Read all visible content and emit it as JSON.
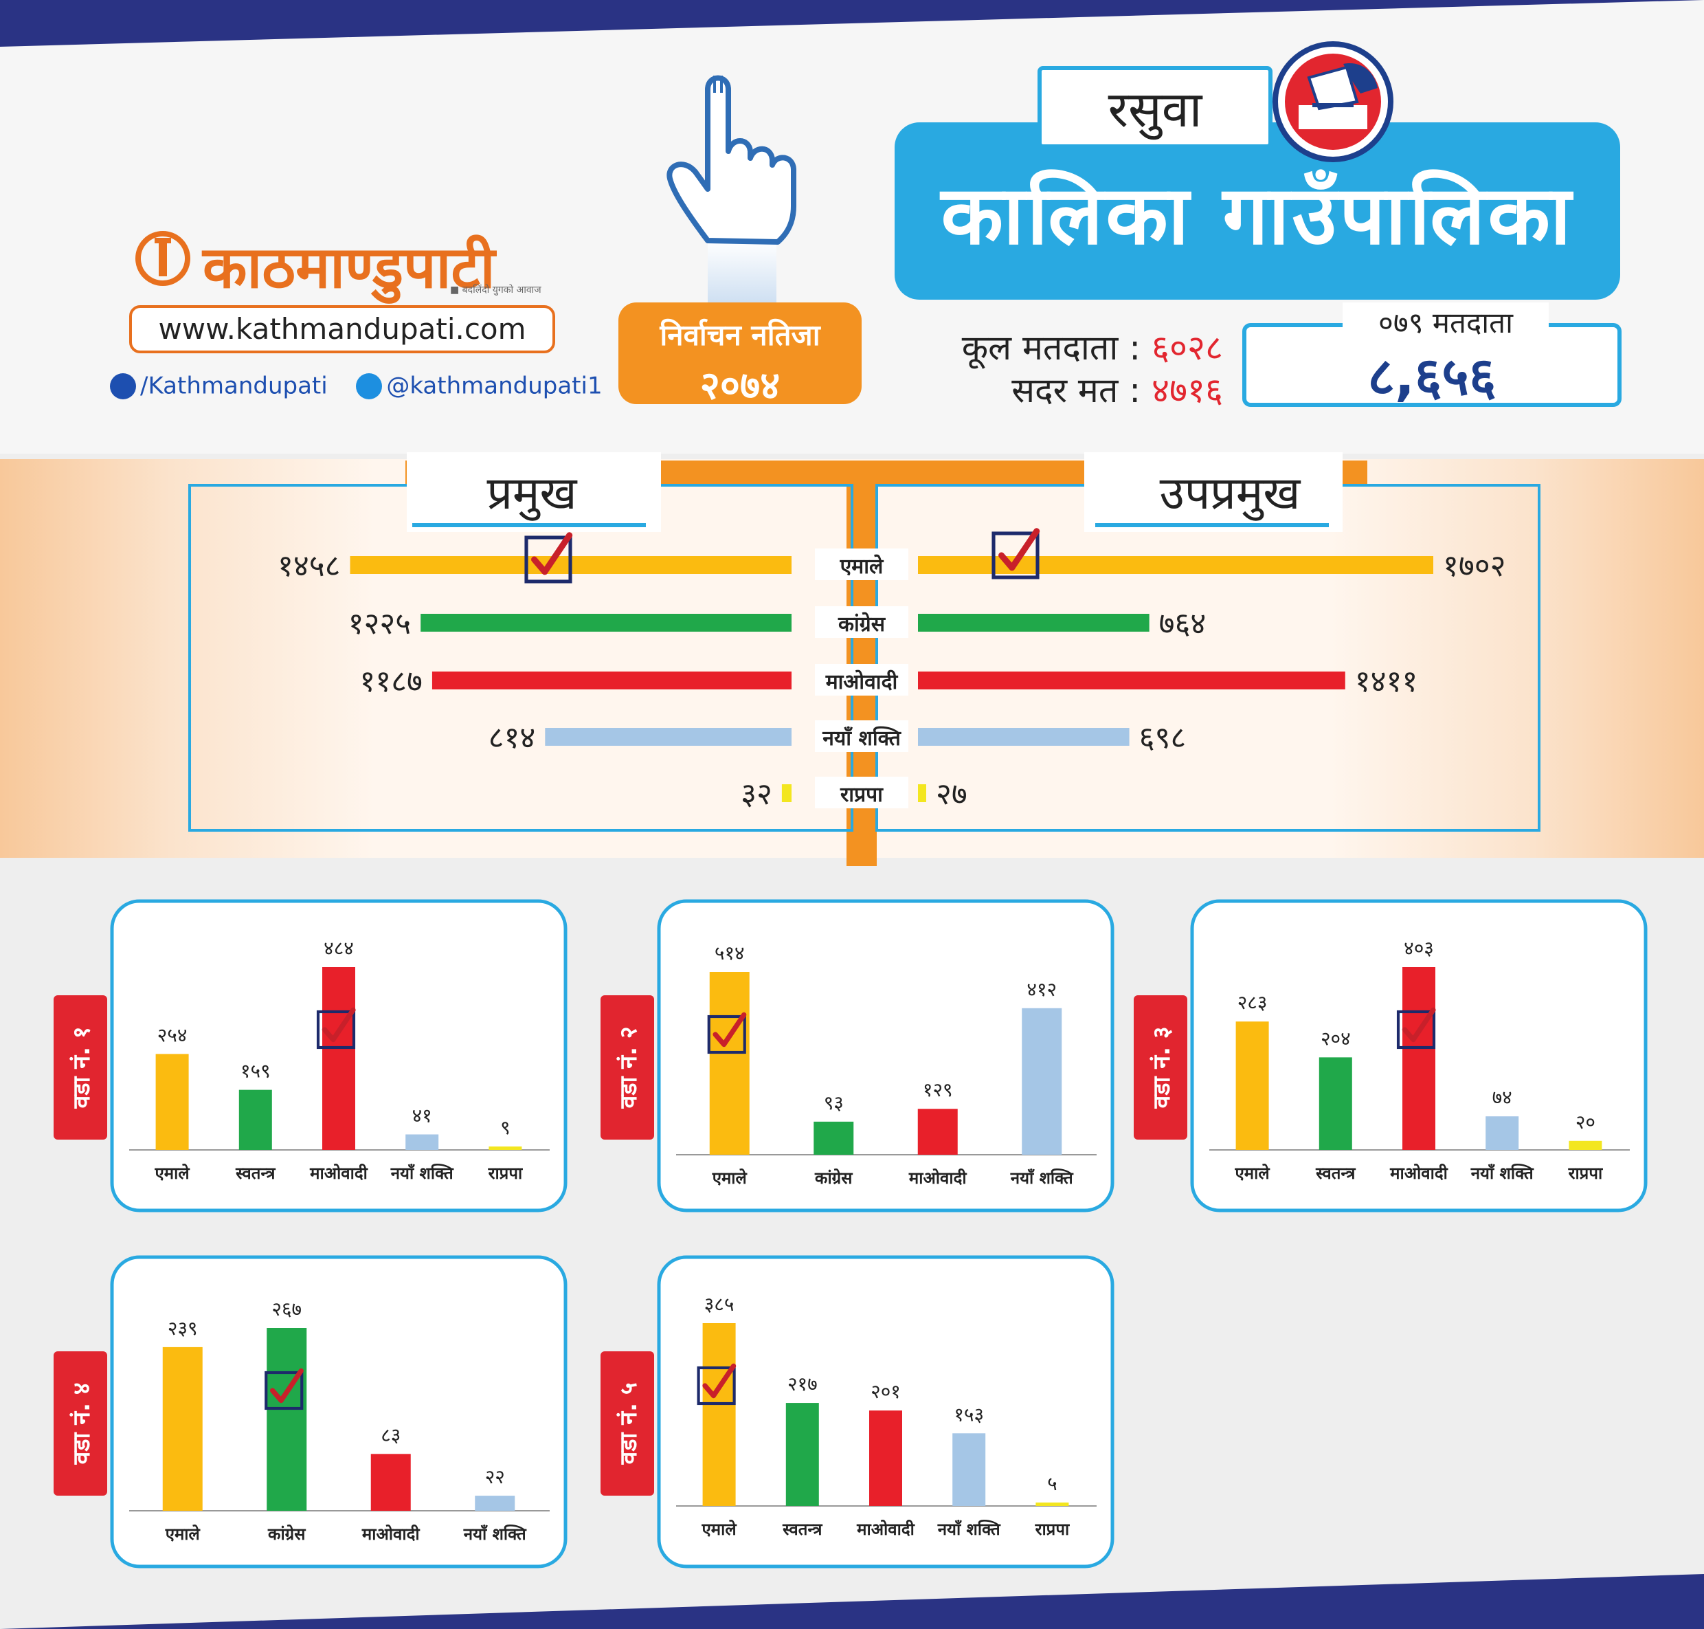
{
  "header": {
    "logo_text": "काठमाण्डुपाटी",
    "logo_tagline": "■ बदलिंदो युगको आवाज",
    "website": "www.kathmandupati.com",
    "facebook": "/Kathmandupati",
    "twitter": "@kathmandupati1",
    "result_line1": "निर्वाचन नतिजा",
    "result_line2": "२०७४",
    "district": "रसुवा",
    "municipality": "कालिका गाउँपालिका",
    "total_voters_label": "कूल मतदाता",
    "total_voters_value": "६०२८",
    "valid_votes_label": "सदर मत",
    "valid_votes_value": "४७१६",
    "ward_voters_label": "०७९ मतदाता",
    "ward_voters_value": "८,६५६",
    "colon": ":"
  },
  "colors": {
    "एमाले": "#fbbb10",
    "कांग्रेस": "#20a84a",
    "स्वतन्त्र": "#20a84a",
    "माओवादी": "#e8202a",
    "नयाँ शक्ति": "#a5c6e6",
    "राप्रपा": "#f3e620",
    "frame": "#29a9e1",
    "orange": "#f39221",
    "ward_tab": "#e1252f"
  },
  "chart_data": [
    {
      "type": "bar",
      "title": "प्रमुख",
      "categories": [
        "एमाले",
        "कांग्रेस",
        "माओवादी",
        "नयाँ शक्ति",
        "राप्रपा"
      ],
      "values": [
        1458,
        1225,
        1187,
        814,
        32
      ],
      "labels": [
        "१४५८",
        "१२२५",
        "११८७",
        "८१४",
        "३२"
      ],
      "winner": "एमाले"
    },
    {
      "type": "bar",
      "title": "उपप्रमुख",
      "categories": [
        "एमाले",
        "कांग्रेस",
        "माओवादी",
        "नयाँ शक्ति",
        "राप्रपा"
      ],
      "values": [
        1702,
        764,
        1411,
        698,
        27
      ],
      "labels": [
        "१७०२",
        "७६४",
        "१४११",
        "६९८",
        "२७"
      ],
      "winner": "एमाले"
    },
    {
      "type": "bar",
      "title": "वडा नं. १",
      "categories": [
        "एमाले",
        "स्वतन्त्र",
        "माओवादी",
        "नयाँ शक्ति",
        "राप्रपा"
      ],
      "values": [
        254,
        159,
        484,
        41,
        9
      ],
      "labels": [
        "२५४",
        "१५९",
        "४८४",
        "४१",
        "९"
      ],
      "winner": "माओवादी"
    },
    {
      "type": "bar",
      "title": "वडा नं. २",
      "categories": [
        "एमाले",
        "कांग्रेस",
        "माओवादी",
        "नयाँ शक्ति"
      ],
      "values": [
        514,
        93,
        129,
        412
      ],
      "labels": [
        "५१४",
        "९३",
        "१२९",
        "४१२"
      ],
      "winner": "एमाले"
    },
    {
      "type": "bar",
      "title": "वडा नं. ३",
      "categories": [
        "एमाले",
        "स्वतन्त्र",
        "माओवादी",
        "नयाँ शक्ति",
        "राप्रपा"
      ],
      "values": [
        283,
        204,
        403,
        74,
        20
      ],
      "labels": [
        "२८३",
        "२०४",
        "४०३",
        "७४",
        "२०"
      ],
      "winner": "माओवादी"
    },
    {
      "type": "bar",
      "title": "वडा नं. ४",
      "categories": [
        "एमाले",
        "कांग्रेस",
        "माओवादी",
        "नयाँ शक्ति"
      ],
      "values": [
        239,
        267,
        83,
        22
      ],
      "labels": [
        "२३९",
        "२६७",
        "८३",
        "२२"
      ],
      "winner": "कांग्रेस"
    },
    {
      "type": "bar",
      "title": "वडा नं. ५",
      "categories": [
        "एमाले",
        "स्वतन्त्र",
        "माओवादी",
        "नयाँ शक्ति",
        "राप्रपा"
      ],
      "values": [
        385,
        217,
        201,
        153,
        5
      ],
      "labels": [
        "३८५",
        "२१७",
        "२०१",
        "१५३",
        "५"
      ],
      "winner": "एमाले"
    }
  ]
}
